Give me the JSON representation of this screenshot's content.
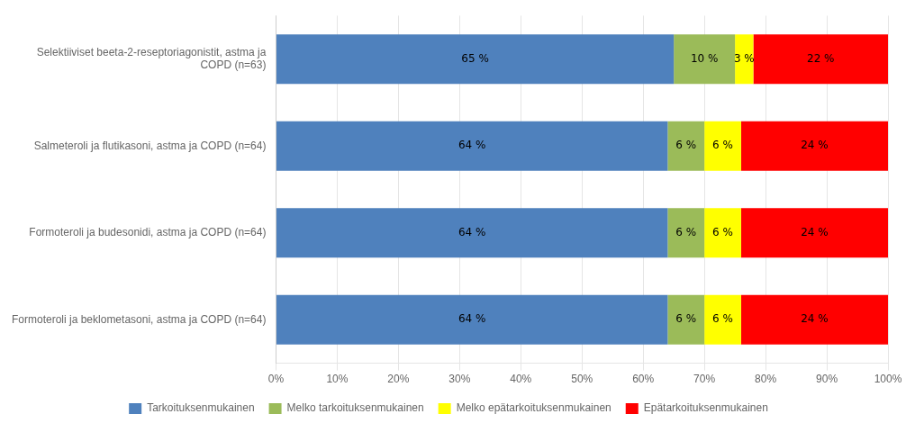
{
  "chart_data": {
    "type": "bar",
    "orientation": "horizontal",
    "stacked": true,
    "categories": [
      "Formoteroli ja beklometasoni, astma ja COPD (n=64)",
      "Formoteroli ja budesonidi, astma ja COPD (n=64)",
      "Salmeteroli ja flutikasoni, astma ja COPD (n=64)",
      "Selektiiviset beeta-2-reseptoriagonistit, astma ja\nCOPD (n=63)"
    ],
    "series": [
      {
        "name": "Tarkoituksenmukainen",
        "color": "#4f81bd",
        "values": [
          64,
          64,
          64,
          65
        ],
        "value_labels": [
          "64 %",
          "64 %",
          "64 %",
          "65 %"
        ]
      },
      {
        "name": "Melko tarkoituksenmukainen",
        "color": "#9bbb59",
        "values": [
          6,
          6,
          6,
          10
        ],
        "value_labels": [
          "6 %",
          "6 %",
          "6 %",
          "10 %"
        ]
      },
      {
        "name": "Melko epätarkoituksenmukainen",
        "color": "#ffff00",
        "values": [
          6,
          6,
          6,
          3
        ],
        "value_labels": [
          "6 %",
          "6 %",
          "6 %",
          "3 %"
        ]
      },
      {
        "name": "Epätarkoituksenmukainen",
        "color": "#ff0000",
        "values": [
          24,
          24,
          24,
          22
        ],
        "value_labels": [
          "24 %",
          "24 %",
          "24 %",
          "22 %"
        ]
      }
    ],
    "xlim": [
      0,
      100
    ],
    "xticks": [
      {
        "value": 0,
        "label": "0%"
      },
      {
        "value": 10,
        "label": "10%"
      },
      {
        "value": 20,
        "label": "20%"
      },
      {
        "value": 30,
        "label": "30%"
      },
      {
        "value": 40,
        "label": "40%"
      },
      {
        "value": 50,
        "label": "50%"
      },
      {
        "value": 60,
        "label": "60%"
      },
      {
        "value": 70,
        "label": "70%"
      },
      {
        "value": 80,
        "label": "80%"
      },
      {
        "value": 90,
        "label": "90%"
      },
      {
        "value": 100,
        "label": "100%"
      }
    ],
    "grid": "x",
    "legend": "bottom",
    "data_labels": true
  }
}
